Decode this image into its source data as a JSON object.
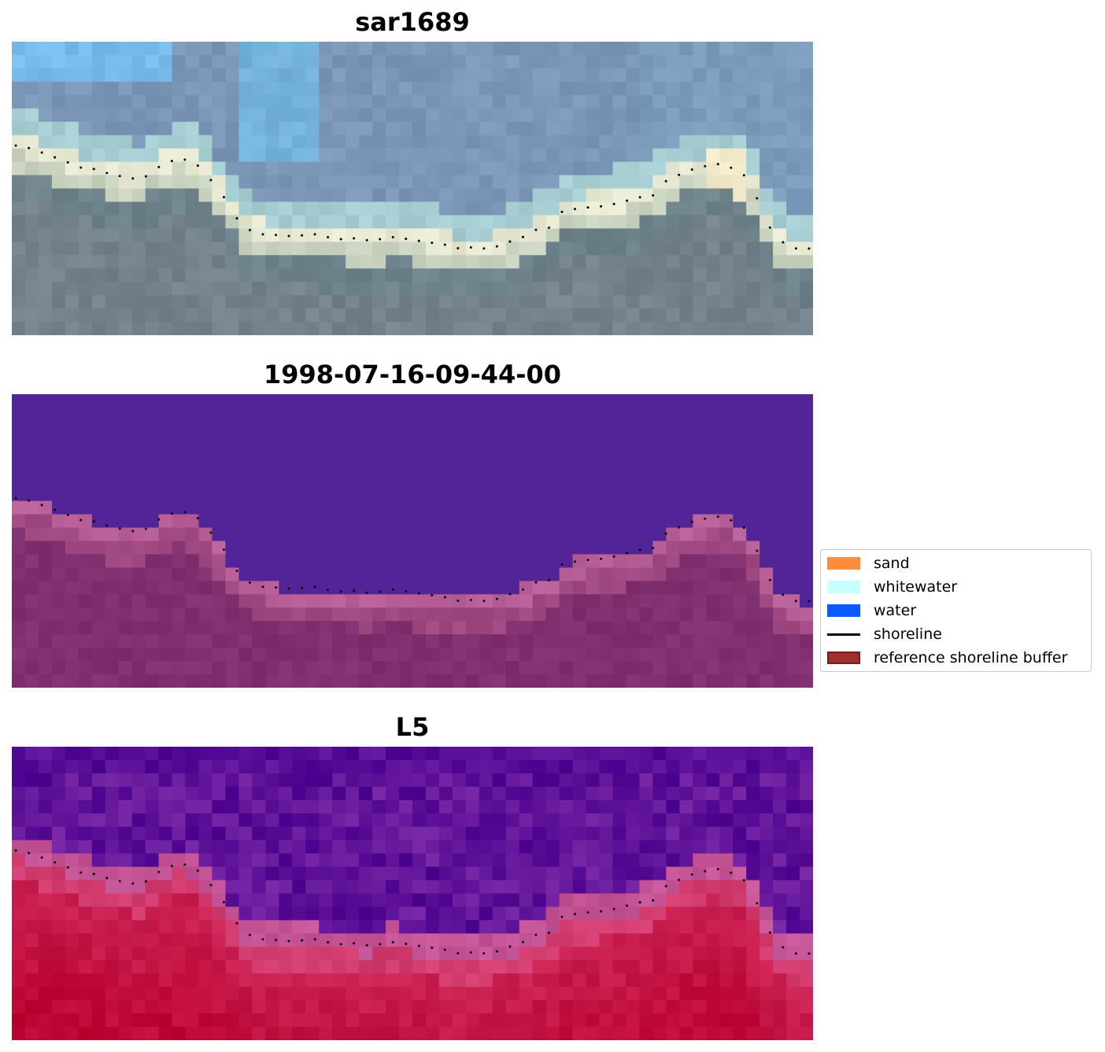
{
  "panels": [
    {
      "title": "sar1689",
      "style": "rgb"
    },
    {
      "title": "1998-07-16-09-44-00",
      "style": "classified"
    },
    {
      "title": "L5",
      "style": "index"
    }
  ],
  "legend": [
    {
      "label": "sand",
      "kind": "swatch",
      "color": "#ff8c3a"
    },
    {
      "label": "whitewater",
      "kind": "swatch",
      "color": "#c8ffff"
    },
    {
      "label": "water",
      "kind": "swatch",
      "color": "#0a5aff"
    },
    {
      "label": "shoreline",
      "kind": "line",
      "color": "#000000"
    },
    {
      "label": "reference shoreline buffer",
      "kind": "buffer",
      "color": "#a0302e"
    }
  ]
}
